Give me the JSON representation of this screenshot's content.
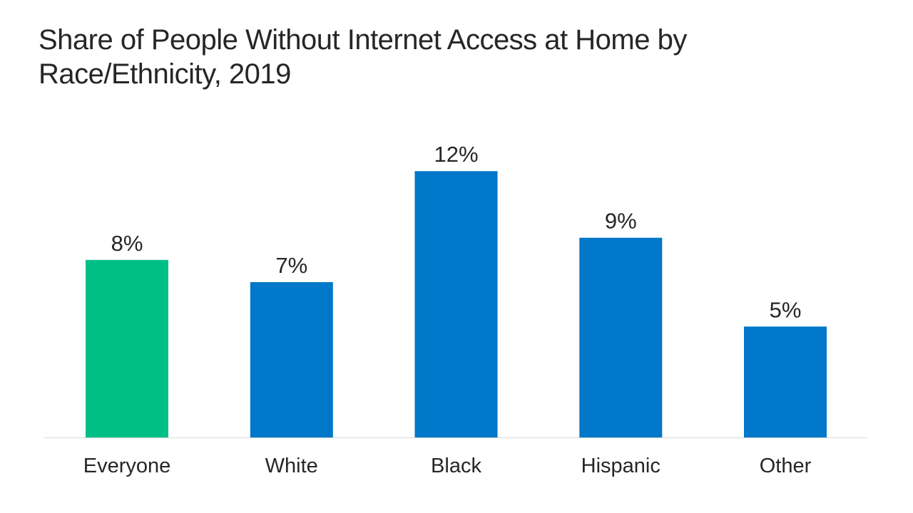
{
  "chart_data": {
    "type": "bar",
    "title_lines": [
      "Share of People Without Internet Access at Home by",
      "Race/Ethnicity, 2019"
    ],
    "categories": [
      "Everyone",
      "White",
      "Black",
      "Hispanic",
      "Other"
    ],
    "values": [
      8,
      7,
      12,
      9,
      5
    ],
    "value_labels": [
      "8%",
      "7%",
      "12%",
      "9%",
      "5%"
    ],
    "unit": "%",
    "colors": [
      "#00BF86",
      "#0077C8",
      "#0077C8",
      "#0077C8",
      "#0077C8"
    ],
    "axis_color": "#D9D9D9",
    "xlabel": "",
    "ylabel": "",
    "grid": false,
    "legend": "none"
  }
}
